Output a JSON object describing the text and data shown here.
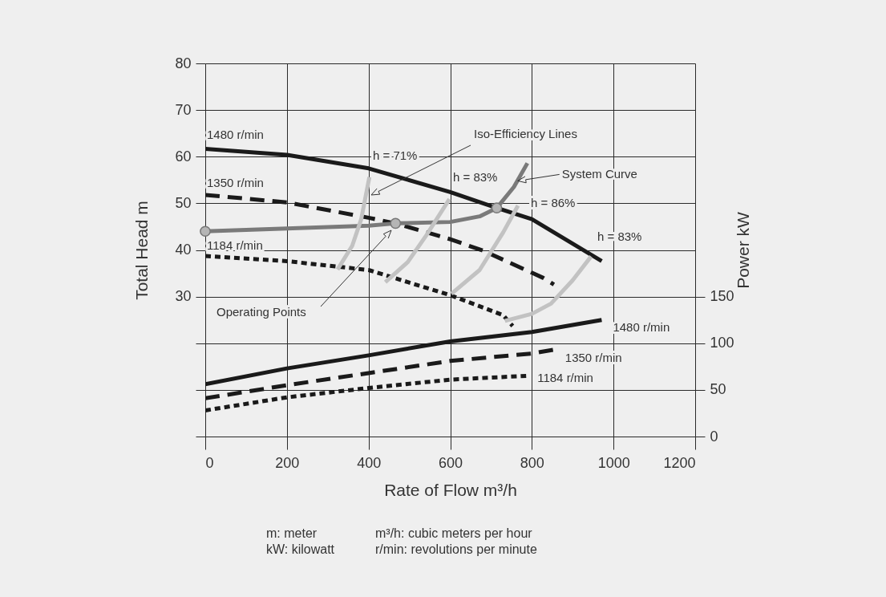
{
  "chart_data": {
    "type": "line",
    "xlabel": "Rate of Flow m³/h",
    "ylabel": "Total Head m",
    "y2label": "Power kW",
    "xlim": [
      0,
      1200
    ],
    "xticks": [
      0,
      200,
      400,
      600,
      800,
      1000,
      1200
    ],
    "ylim": [
      0,
      80
    ],
    "yticks": [
      {
        "value": 0,
        "label": null
      },
      {
        "value": 10,
        "label": null
      },
      {
        "value": 20,
        "label": null
      },
      30,
      40,
      50,
      60,
      70,
      80
    ],
    "y2lim": [
      0,
      400
    ],
    "y2ticks": [
      0,
      50,
      100,
      150
    ],
    "grid": true,
    "legend": false,
    "series": [
      {
        "name": "1480 r/min",
        "color": "#1a1a1a",
        "line_style": "solid",
        "x": [
          0,
          200,
          400,
          600,
          714,
          800,
          971
        ],
        "values": [
          61.7,
          60.4,
          57.5,
          52.4,
          49.0,
          46.6,
          37.6
        ]
      },
      {
        "name": "1350 r/min",
        "color": "#1a1a1a",
        "line_style": "dashed",
        "x": [
          0,
          200,
          400,
          466,
          600,
          682,
          828,
          854
        ],
        "values": [
          51.8,
          50.2,
          46.9,
          45.7,
          42.3,
          39.8,
          34.0,
          32.6
        ]
      },
      {
        "name": "1184 r/min",
        "color": "#1a1a1a",
        "line_style": "dotted",
        "x": [
          0,
          200,
          400,
          600,
          730,
          753
        ],
        "values": [
          38.7,
          37.6,
          35.7,
          30.3,
          26.0,
          23.7
        ]
      },
      {
        "name": "1480 r/min",
        "color": "#1a1a1a",
        "line_style": "solid",
        "axis": "y2",
        "x": [
          0,
          200,
          400,
          600,
          800,
          971
        ],
        "values": [
          56,
          73,
          87,
          102,
          112,
          125
        ]
      },
      {
        "name": "1350 r/min",
        "color": "#1a1a1a",
        "line_style": "dashed",
        "axis": "y2",
        "x": [
          0,
          200,
          400,
          600,
          800,
          854
        ],
        "values": [
          41,
          55,
          68,
          81,
          89,
          93
        ]
      },
      {
        "name": "1184 r/min",
        "color": "#1a1a1a",
        "line_style": "dotted",
        "axis": "y2",
        "x": [
          0,
          200,
          400,
          600,
          786
        ],
        "values": [
          28,
          42,
          52,
          61,
          65
        ]
      },
      {
        "name": "System Curve",
        "color": "#7a7a7a",
        "line_style": "solid",
        "x": [
          0,
          200,
          400,
          466,
          600,
          672,
          714,
          756,
          789
        ],
        "values": [
          44.0,
          44.6,
          45.2,
          45.7,
          46.0,
          47.2,
          49.0,
          53.5,
          58.6
        ]
      },
      {
        "color": "#c2c2c2",
        "line_style": "solid",
        "x": [
          324,
          360,
          382,
          402
        ],
        "values": [
          35.8,
          40.9,
          46.6,
          55.6
        ]
      },
      {
        "color": "#c2c2c2",
        "line_style": "solid",
        "x": [
          441,
          496,
          542,
          598
        ],
        "values": [
          33.1,
          37.4,
          43.2,
          50.9
        ]
      },
      {
        "color": "#c2c2c2",
        "line_style": "solid",
        "x": [
          603,
          672,
          730,
          766
        ],
        "values": [
          30.6,
          35.7,
          43.8,
          49.5
        ]
      },
      {
        "color": "#c2c2c2",
        "line_style": "solid",
        "x": [
          734,
          800,
          847,
          900,
          945
        ],
        "values": [
          24.8,
          26.3,
          28.5,
          33.5,
          38.6
        ]
      },
      {
        "type": "scatter",
        "marker": "circle",
        "color": "#b5b5b5",
        "x": [
          0,
          466,
          714
        ],
        "values": [
          44.0,
          45.7,
          49.0
        ]
      }
    ],
    "annotations": [
      "Iso-Efficiency Lines",
      "h = 71%",
      "h = 83%",
      "h = 86%",
      "h = 83%",
      "Operating Points",
      "m: meter",
      "m³/h: cubic meters per hour",
      "kW: kilowatt",
      "r/min: revolutions per minute"
    ]
  }
}
